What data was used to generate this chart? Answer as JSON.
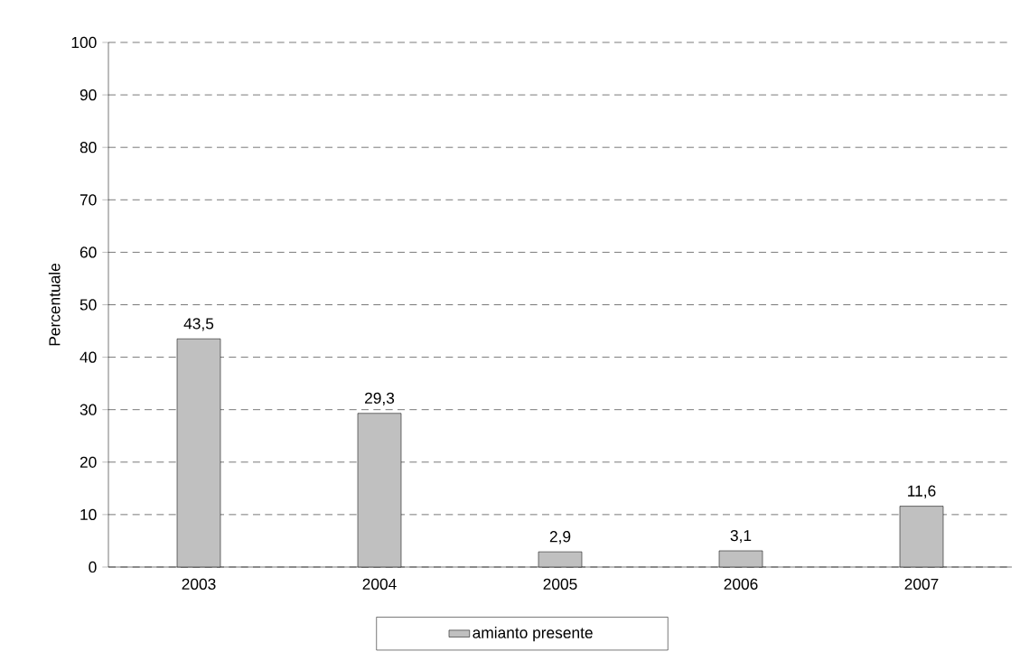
{
  "chart_data": {
    "type": "bar",
    "ylabel": "Percentuale",
    "categories": [
      "2003",
      "2004",
      "2005",
      "2006",
      "2007"
    ],
    "series": [
      {
        "name": "amianto presente",
        "color": "#c0c0c0",
        "values": [
          43.5,
          29.3,
          2.9,
          3.1,
          11.6
        ],
        "value_labels": [
          "43,5",
          "29,3",
          "2,9",
          "3,1",
          "11,6"
        ]
      }
    ],
    "ylim": [
      0,
      100
    ],
    "yticks": [
      0,
      10,
      20,
      30,
      40,
      50,
      60,
      70,
      80,
      90,
      100
    ],
    "grid": "y",
    "legend": "bottom"
  }
}
